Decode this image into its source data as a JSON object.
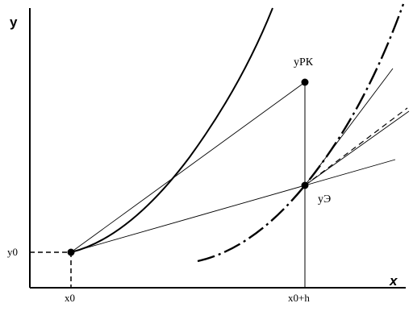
{
  "axes": {
    "y_label": "y",
    "x_label": "x"
  },
  "points": {
    "y0_label": "y0",
    "x0_label": "x0",
    "x0h_label": "x0+h",
    "y_rk_label": "yРК",
    "y_e_label": "yЭ"
  }
}
